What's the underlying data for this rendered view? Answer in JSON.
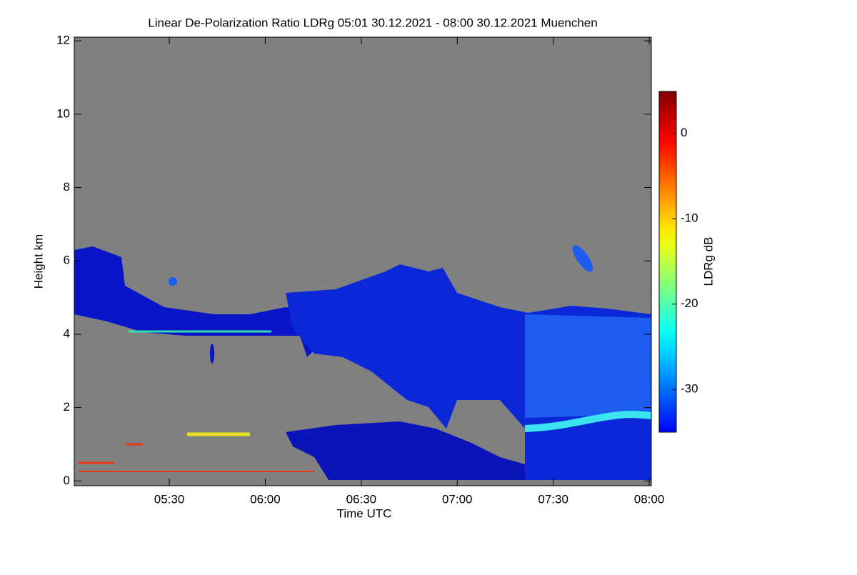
{
  "chart_data": {
    "type": "heatmap",
    "title": "Linear De-Polarization Ratio LDRg   05:01 30.12.2021 - 08:00 30.12.2021 Muenchen",
    "x_label": "Time UTC",
    "y_label": "Height km",
    "colorbar_label": "LDRg dB",
    "xlim": [
      5.005,
      8.011
    ],
    "xticks": [
      {
        "value": 5.5,
        "label": "05:30"
      },
      {
        "value": 6,
        "label": "06:00"
      },
      {
        "value": 6.5,
        "label": "06:30"
      },
      {
        "value": 7,
        "label": "07:00"
      },
      {
        "value": 7.5,
        "label": "07:30"
      },
      {
        "value": 8,
        "label": "08:00"
      }
    ],
    "ylim": [
      -0.13,
      12.1
    ],
    "yticks": [
      0,
      2,
      4,
      6,
      8,
      10,
      12
    ],
    "colormap": "jet",
    "clim": [
      -35,
      4.9
    ],
    "cticks": [
      0,
      -10,
      -20,
      -30
    ]
  }
}
